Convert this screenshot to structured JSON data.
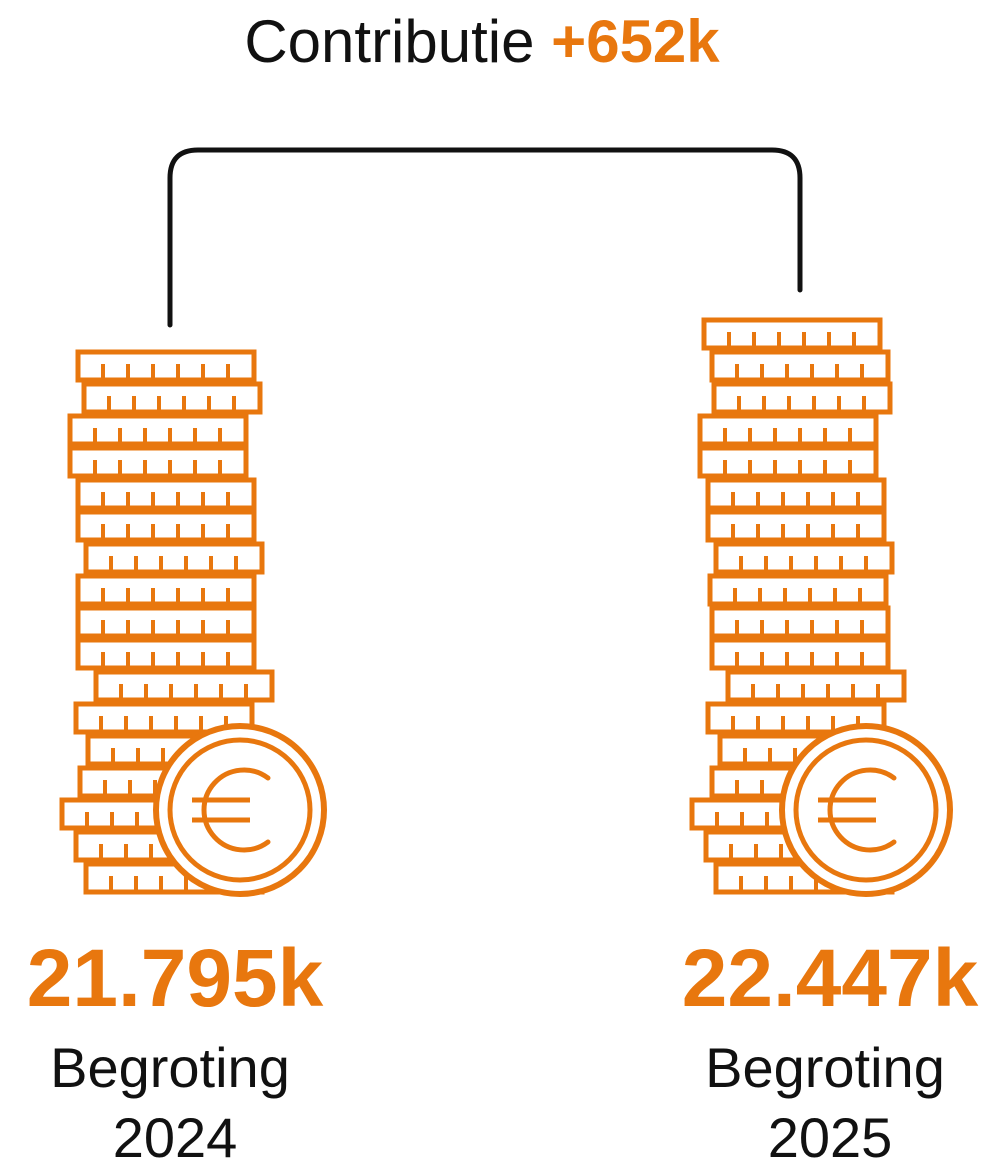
{
  "title": {
    "text": "Contributie",
    "highlight": "+652k"
  },
  "items": [
    {
      "value": "21.795k",
      "label": "Begroting",
      "year": "2024"
    },
    {
      "value": "22.447k",
      "label": "Begroting",
      "year": "2025"
    }
  ]
}
